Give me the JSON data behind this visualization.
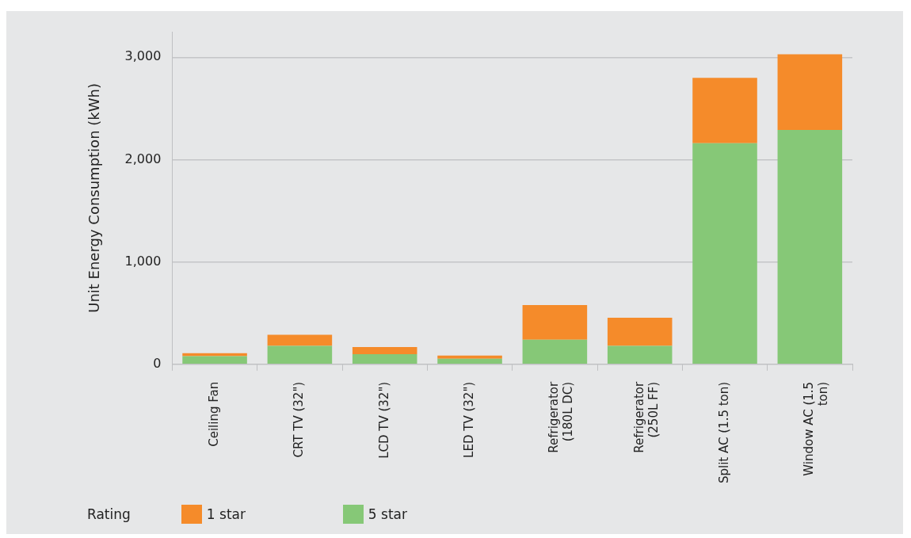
{
  "chart_data": {
    "type": "bar",
    "stacked": true,
    "ylabel": "Unit Energy Consumption (kWh)",
    "legend_title": "Rating",
    "legend": "bottom left",
    "categories": [
      "Ceiling Fan",
      "CRT TV (32\")",
      "LCD TV (32\")",
      "LED TV (32\")",
      "Refrigerator (180L DC)",
      "Refrigerator (250L FF)",
      "Split AC (1.5 ton)",
      "Window AC (1.5 ton)"
    ],
    "series": [
      {
        "name": "5 star",
        "color": "#86c877",
        "values": [
          80,
          180,
          100,
          55,
          240,
          180,
          2160,
          2290
        ]
      },
      {
        "name": "1 star",
        "color": "#f58b2a",
        "values": [
          30,
          110,
          70,
          30,
          340,
          275,
          640,
          740
        ]
      }
    ],
    "ylim": [
      0,
      3250
    ],
    "yticks": [
      0,
      {
        "value": 1000,
        "label": "1,000"
      },
      {
        "value": 2000,
        "label": "2,000"
      },
      {
        "value": 3000,
        "label": "3,000"
      }
    ],
    "grid": "y"
  }
}
